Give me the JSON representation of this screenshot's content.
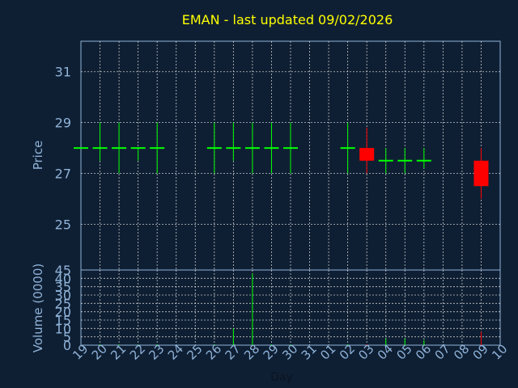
{
  "chart_data": {
    "type": "candlestick",
    "title": "EMAN - last updated 09/02/2026",
    "xlabel": "Day",
    "price_panel": {
      "ylabel": "Price",
      "ylim": [
        23.2,
        32.2
      ],
      "yticks": [
        25,
        27,
        29,
        31
      ],
      "grid": true
    },
    "volume_panel": {
      "ylabel": "Volume (0000)",
      "ylim": [
        0,
        45
      ],
      "yticks": [
        0,
        5,
        10,
        15,
        20,
        25,
        30,
        35,
        40,
        45
      ],
      "grid": true
    },
    "x_ticks": [
      "19",
      "20",
      "21",
      "22",
      "23",
      "24",
      "25",
      "26",
      "27",
      "28",
      "29",
      "30",
      "31",
      "01",
      "02",
      "03",
      "04",
      "05",
      "06",
      "07",
      "08",
      "09",
      "10"
    ],
    "up_color": "#00ff00",
    "down_color": "#ff0000",
    "candles": [
      {
        "day": "19",
        "open": 28.0,
        "high": 28.0,
        "low": 28.0,
        "close": 28.0,
        "volume": 0
      },
      {
        "day": "20",
        "open": 28.0,
        "high": 29.0,
        "low": 27.5,
        "close": 28.0,
        "volume": 0.5
      },
      {
        "day": "21",
        "open": 28.0,
        "high": 29.0,
        "low": 27.0,
        "close": 28.0,
        "volume": 0.5
      },
      {
        "day": "22",
        "open": 28.0,
        "high": 28.0,
        "low": 27.5,
        "close": 28.0,
        "volume": 0.3
      },
      {
        "day": "23",
        "open": 28.0,
        "high": 29.0,
        "low": 27.0,
        "close": 28.0,
        "volume": 0.5
      },
      {
        "day": "26",
        "open": 28.0,
        "high": 29.0,
        "low": 27.0,
        "close": 28.0,
        "volume": 0.5
      },
      {
        "day": "27",
        "open": 28.0,
        "high": 29.0,
        "low": 27.5,
        "close": 28.0,
        "volume": 10
      },
      {
        "day": "28",
        "open": 28.0,
        "high": 29.0,
        "low": 27.0,
        "close": 28.0,
        "volume": 43
      },
      {
        "day": "29",
        "open": 28.0,
        "high": 29.0,
        "low": 27.0,
        "close": 28.0,
        "volume": 0.5
      },
      {
        "day": "30",
        "open": 28.0,
        "high": 29.0,
        "low": 27.0,
        "close": 28.0,
        "volume": 0.5
      },
      {
        "day": "02",
        "open": 28.0,
        "high": 29.0,
        "low": 27.0,
        "close": 28.0,
        "volume": 0.5
      },
      {
        "day": "03",
        "open": 28.0,
        "high": 28.8,
        "low": 27.0,
        "close": 27.5,
        "volume": 0.5
      },
      {
        "day": "04",
        "open": 27.5,
        "high": 28.0,
        "low": 27.0,
        "close": 27.5,
        "volume": 4
      },
      {
        "day": "05",
        "open": 27.5,
        "high": 28.0,
        "low": 27.0,
        "close": 27.5,
        "volume": 4
      },
      {
        "day": "06",
        "open": 27.5,
        "high": 28.0,
        "low": 27.2,
        "close": 27.5,
        "volume": 3
      },
      {
        "day": "09",
        "open": 27.5,
        "high": 28.0,
        "low": 26.0,
        "close": 26.5,
        "volume": 8
      }
    ]
  }
}
